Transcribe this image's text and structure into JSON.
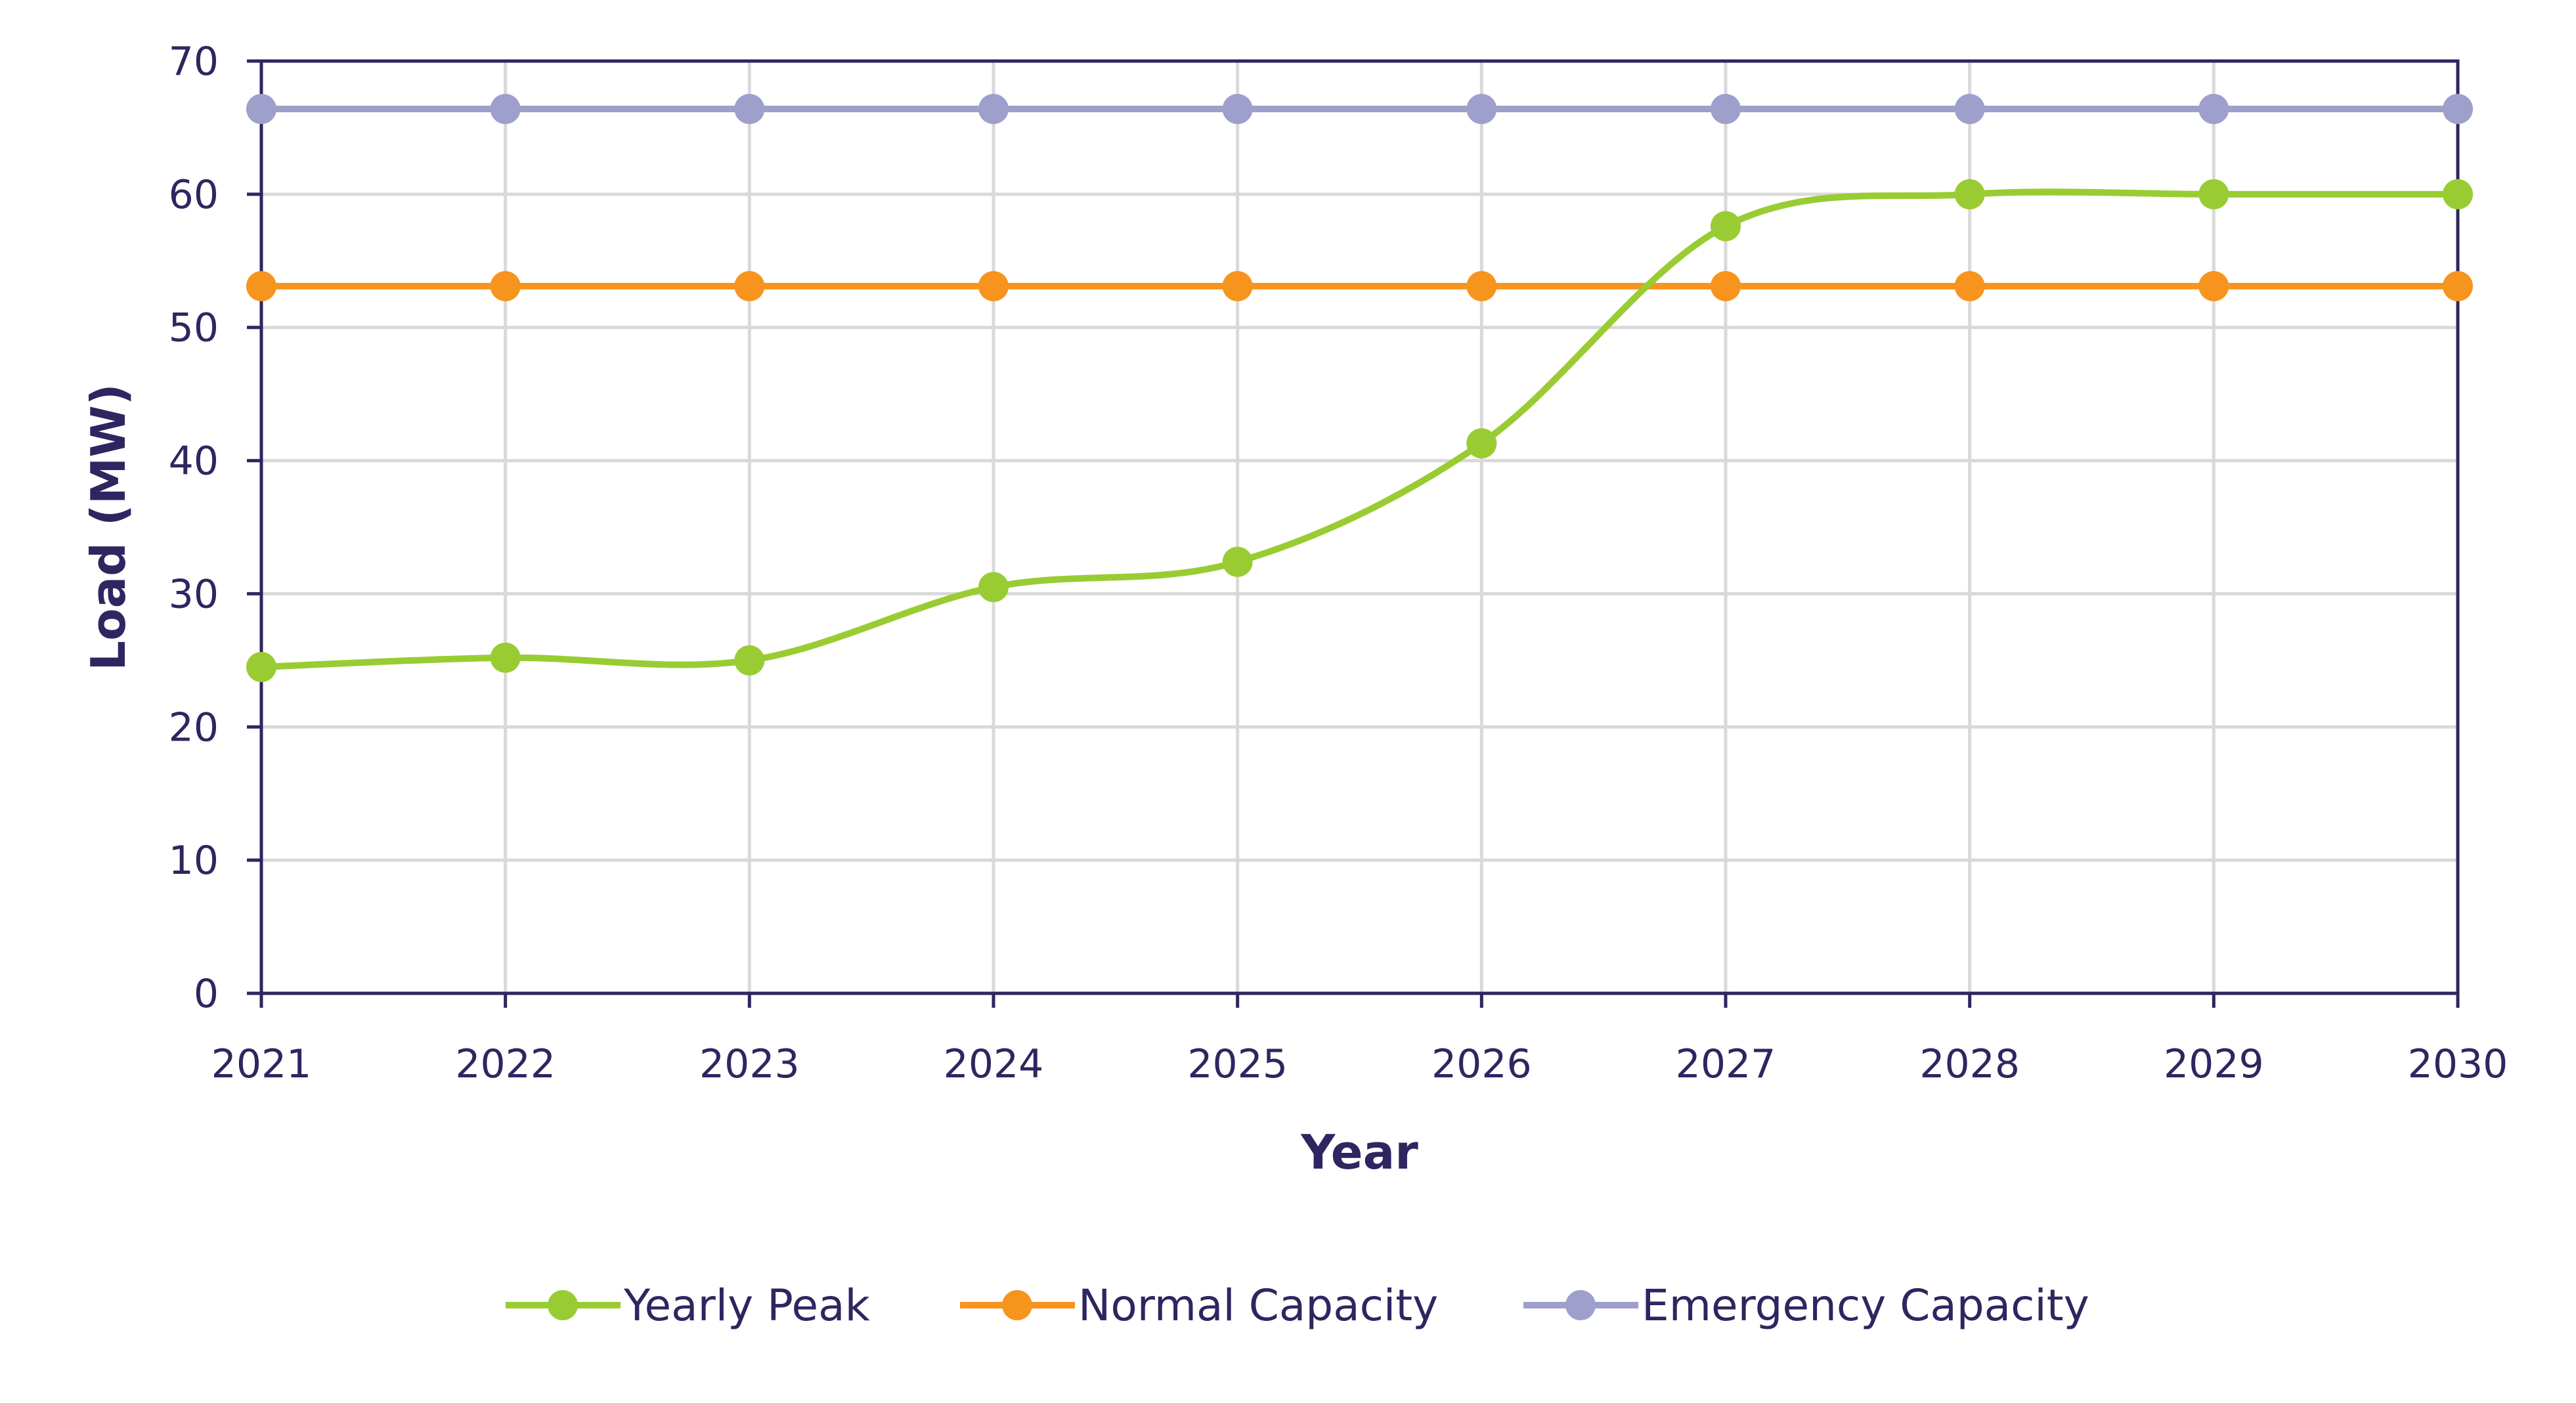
{
  "chart_data": {
    "type": "line",
    "title": "",
    "xlabel": "Year",
    "ylabel": "Load (MW)",
    "categories": [
      "2021",
      "2022",
      "2023",
      "2024",
      "2025",
      "2026",
      "2027",
      "2028",
      "2029",
      "2030"
    ],
    "ylim": [
      0,
      70
    ],
    "yticks": [
      0,
      10,
      20,
      30,
      40,
      50,
      60,
      70
    ],
    "grid": true,
    "smooth": true,
    "legend_position": "bottom",
    "series": [
      {
        "name": "Yearly Peak",
        "color": "#99CC33",
        "values": [
          24.5,
          25.2,
          25.0,
          30.5,
          32.4,
          41.3,
          57.6,
          60.0,
          60.0,
          60.0
        ]
      },
      {
        "name": "Normal Capacity",
        "color": "#F7941D",
        "values": [
          53.1,
          53.1,
          53.1,
          53.1,
          53.1,
          53.1,
          53.1,
          53.1,
          53.1,
          53.1
        ]
      },
      {
        "name": "Emergency Capacity",
        "color": "#9E9FCB",
        "values": [
          66.4,
          66.4,
          66.4,
          66.4,
          66.4,
          66.4,
          66.4,
          66.4,
          66.4,
          66.4
        ]
      }
    ],
    "colors": {
      "text": "#2E2660",
      "axis": "#2E2660",
      "grid": "#D9D9D9"
    }
  }
}
